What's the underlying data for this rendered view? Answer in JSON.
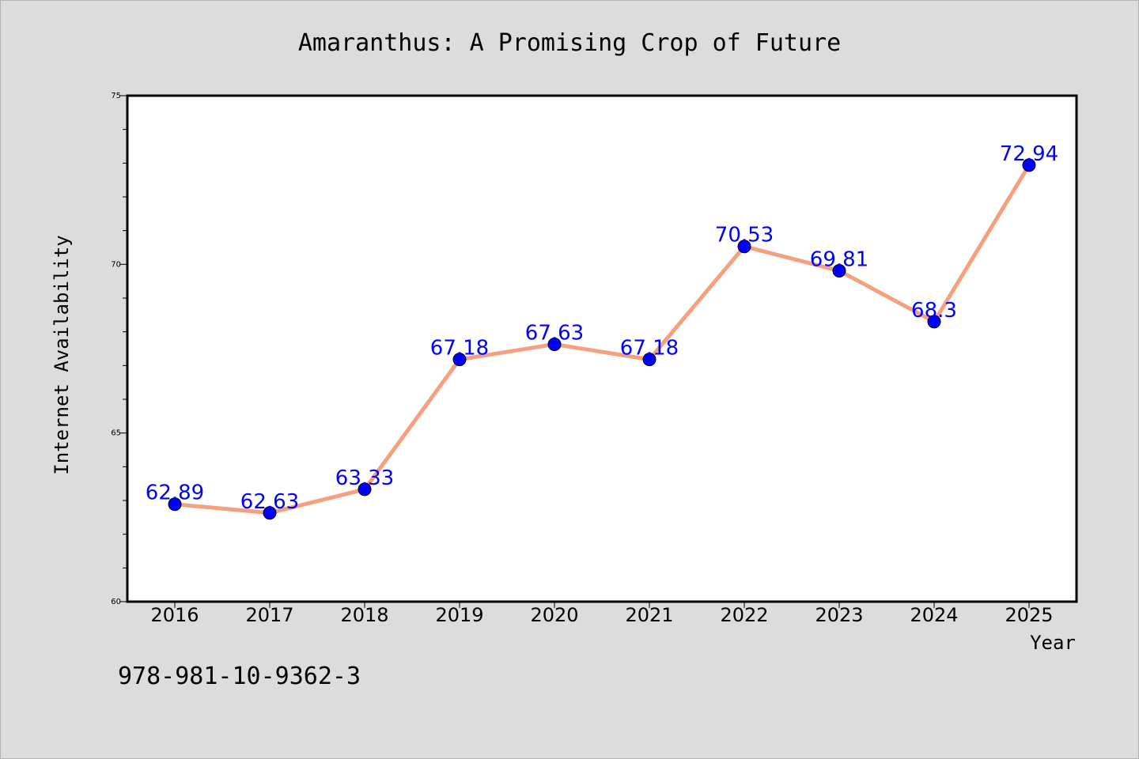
{
  "chart_data": {
    "type": "line",
    "title": "Amaranthus: A Promising Crop of Future",
    "xlabel": "Year",
    "ylabel": "Internet Availability",
    "categories": [
      "2016",
      "2017",
      "2018",
      "2019",
      "2020",
      "2021",
      "2022",
      "2023",
      "2024",
      "2025"
    ],
    "values": [
      62.89,
      62.63,
      63.33,
      67.18,
      67.63,
      67.18,
      70.53,
      69.81,
      68.3,
      72.94
    ],
    "data_labels": [
      "62.89",
      "62.63",
      "63.33",
      "67.18",
      "67.63",
      "67.18",
      "70.53",
      "69.81",
      "68.3",
      "72.94"
    ],
    "ylim": [
      60,
      75
    ],
    "y_major_ticks": [
      "60",
      "65",
      "70",
      "75"
    ],
    "grid": false,
    "legend": "none",
    "colors": {
      "line": "#f5a07e",
      "marker": "#0000ff",
      "data_label": "#0000ff",
      "background": "#dcdcdc",
      "plot_background": "#ffffff"
    }
  },
  "footer": {
    "isbn": "978-981-10-9362-3"
  }
}
